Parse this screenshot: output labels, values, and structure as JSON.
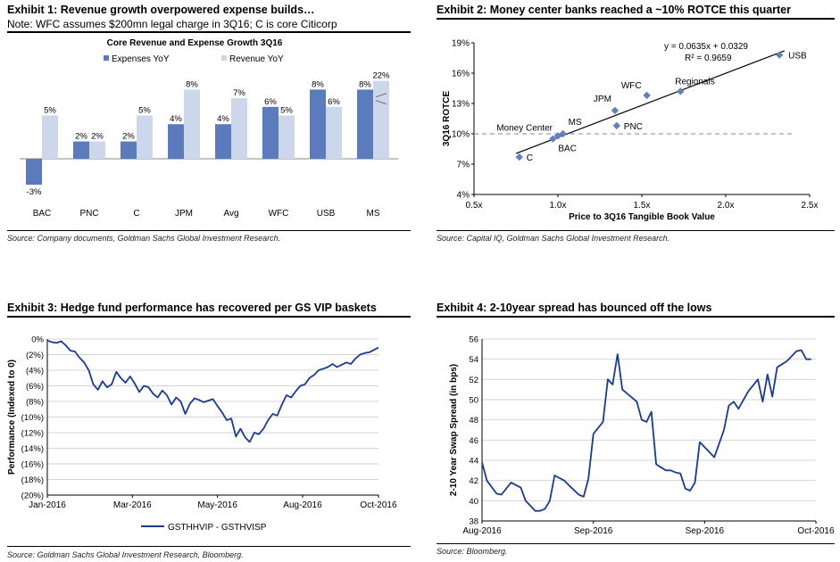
{
  "exhibits": [
    {
      "title": "Exhibit 1: Revenue growth overpowered expense builds…",
      "note": "Note: WFC assumes $200mn legal charge in 3Q16; C is core Citicorp",
      "source": "Source: Company documents, Goldman Sachs Global Investment Research."
    },
    {
      "title": "Exhibit 2: Money center banks reached a ~10% ROTCE this quarter",
      "source": "Source: Capital IQ, Goldman Sachs Global Investment Research."
    },
    {
      "title": "Exhibit 3: Hedge fund performance has recovered per GS VIP baskets",
      "source": "Source: Goldman Sachs Global Investment Research, Bloomberg."
    },
    {
      "title": "Exhibit 4: 2-10year spread has bounced off the lows",
      "source": "Source: Bloomberg."
    }
  ],
  "chart_data": [
    {
      "type": "bar",
      "title": "Core Revenue and Expense Growth 3Q16",
      "categories": [
        "BAC",
        "PNC",
        "C",
        "JPM",
        "Avg",
        "WFC",
        "USB",
        "MS"
      ],
      "series": [
        {
          "name": "Expenses YoY",
          "values": [
            -3,
            2,
            2,
            4,
            4,
            6,
            8,
            8
          ],
          "labels": [
            "-3%",
            "2%",
            "2%",
            "4%",
            "4%",
            "6%",
            "8%",
            "8%"
          ]
        },
        {
          "name": "Revenue YoY",
          "values": [
            5,
            2,
            5,
            8,
            7,
            5,
            6,
            22
          ],
          "labels": [
            "5%",
            "2%",
            "5%",
            "8%",
            "7%",
            "5%",
            "6%",
            "22%"
          ]
        }
      ],
      "ylim": [
        -4,
        10
      ],
      "axis_break": "MS Revenue YoY bar truncated (22%)",
      "legend": "top",
      "colors": {
        "expenses": "#5b7bbd",
        "revenue": "#cdd7eb"
      }
    },
    {
      "type": "scatter",
      "xlabel": "Price to 3Q16 Tangible Book Value",
      "ylabel": "3Q16 ROTCE",
      "xlim": [
        0.5,
        2.5
      ],
      "ylim": [
        4,
        19
      ],
      "xticks": [
        0.5,
        1.0,
        1.5,
        2.0,
        2.5
      ],
      "xtick_labels": [
        "0.5x",
        "1.0x",
        "1.5x",
        "2.0x",
        "2.5x"
      ],
      "yticks": [
        4,
        7,
        10,
        13,
        16,
        19
      ],
      "ytick_labels": [
        "4%",
        "7%",
        "10%",
        "13%",
        "16%",
        "19%"
      ],
      "points": [
        {
          "label": "C",
          "x": 0.77,
          "y": 7.7
        },
        {
          "label": "BAC",
          "x": 0.97,
          "y": 9.5
        },
        {
          "label": "Money Center",
          "x": 1.0,
          "y": 9.8
        },
        {
          "label": "MS",
          "x": 1.03,
          "y": 10.0
        },
        {
          "label": "PNC",
          "x": 1.35,
          "y": 10.8
        },
        {
          "label": "JPM",
          "x": 1.34,
          "y": 12.3
        },
        {
          "label": "WFC",
          "x": 1.53,
          "y": 13.8
        },
        {
          "label": "Regionals",
          "x": 1.73,
          "y": 14.2
        },
        {
          "label": "USB",
          "x": 2.32,
          "y": 17.8
        }
      ],
      "trendline": {
        "slope": 0.0635,
        "intercept": 0.0329,
        "equation": "y = 0.0635x + 0.0329",
        "r2": "R² = 0.9659"
      },
      "reference_line": 10,
      "color": "#6380b8"
    },
    {
      "type": "line",
      "ylabel": "Performance (Indexed to 0)",
      "ylim": [
        -20,
        0
      ],
      "yticks": [
        0,
        -2,
        -4,
        -6,
        -8,
        -10,
        -12,
        -14,
        -16,
        -18,
        -20
      ],
      "ytick_labels": [
        "0%",
        "(2%)",
        "(4%)",
        "(6%)",
        "(8%)",
        "(10%)",
        "(12%)",
        "(14%)",
        "(16%)",
        "(18%)",
        "(20%)"
      ],
      "xlim": [
        "2016-01-01",
        "2016-10-15"
      ],
      "x_tick_dates": [
        "2016-01-01",
        "2016-03-15",
        "2016-05-28",
        "2016-08-10",
        "2016-10-15"
      ],
      "xtick_labels": [
        "Jan-2016",
        "Mar-2016",
        "May-2016",
        "Aug-2016",
        "Oct-2016"
      ],
      "legend": "bottom",
      "grid": true,
      "series": [
        {
          "name": "GSTHHVIP - GSTHVISP",
          "color": "#1a3a8c",
          "x": [
            "2016-01-01",
            "2016-01-05",
            "2016-01-09",
            "2016-01-13",
            "2016-01-17",
            "2016-01-21",
            "2016-01-25",
            "2016-01-29",
            "2016-02-02",
            "2016-02-06",
            "2016-02-10",
            "2016-02-14",
            "2016-02-18",
            "2016-02-22",
            "2016-02-26",
            "2016-03-01",
            "2016-03-05",
            "2016-03-09",
            "2016-03-13",
            "2016-03-17",
            "2016-03-21",
            "2016-03-25",
            "2016-03-29",
            "2016-04-02",
            "2016-04-06",
            "2016-04-10",
            "2016-04-14",
            "2016-04-18",
            "2016-04-22",
            "2016-04-26",
            "2016-04-30",
            "2016-05-04",
            "2016-05-08",
            "2016-05-12",
            "2016-05-16",
            "2016-05-20",
            "2016-05-24",
            "2016-05-28",
            "2016-06-01",
            "2016-06-05",
            "2016-06-09",
            "2016-06-13",
            "2016-06-17",
            "2016-06-21",
            "2016-06-25",
            "2016-06-29",
            "2016-07-03",
            "2016-07-07",
            "2016-07-11",
            "2016-07-15",
            "2016-07-19",
            "2016-07-23",
            "2016-07-27",
            "2016-07-31",
            "2016-08-04",
            "2016-08-08",
            "2016-08-12",
            "2016-08-16",
            "2016-08-20",
            "2016-08-24",
            "2016-08-28",
            "2016-09-01",
            "2016-09-05",
            "2016-09-09",
            "2016-09-13",
            "2016-09-17",
            "2016-09-21",
            "2016-09-25",
            "2016-09-29",
            "2016-10-03",
            "2016-10-07",
            "2016-10-11",
            "2016-10-15"
          ],
          "values": [
            -0.2,
            -0.4,
            -0.5,
            -0.3,
            -0.8,
            -1.5,
            -1.6,
            -2.4,
            -3.0,
            -4.0,
            -5.8,
            -6.5,
            -5.4,
            -6.2,
            -5.8,
            -4.2,
            -5.0,
            -5.6,
            -4.8,
            -5.7,
            -6.8,
            -6.0,
            -6.2,
            -7.0,
            -7.5,
            -6.6,
            -7.2,
            -8.4,
            -7.5,
            -8.0,
            -9.6,
            -8.3,
            -7.6,
            -7.8,
            -8.1,
            -7.9,
            -7.7,
            -8.6,
            -9.4,
            -10.4,
            -10.2,
            -12.5,
            -11.5,
            -12.6,
            -13.2,
            -12.0,
            -12.2,
            -11.5,
            -10.4,
            -9.6,
            -9.8,
            -8.4,
            -7.2,
            -7.5,
            -6.7,
            -6.0,
            -5.8,
            -5.0,
            -4.6,
            -4.0,
            -3.8,
            -3.6,
            -3.2,
            -3.6,
            -3.3,
            -3.0,
            -3.2,
            -2.5,
            -2.0,
            -1.8,
            -1.7,
            -1.4,
            -1.1
          ]
        }
      ]
    },
    {
      "type": "line",
      "ylabel": "2-10 Year Swap Spread (in bps)",
      "ylim": [
        38,
        56
      ],
      "yticks": [
        38,
        40,
        42,
        44,
        46,
        48,
        50,
        52,
        54,
        56
      ],
      "xlim": [
        "2016-08-01",
        "2016-10-09"
      ],
      "x_tick_dates": [
        "2016-08-01",
        "2016-08-24",
        "2016-09-16",
        "2016-10-09"
      ],
      "xtick_labels": [
        "Aug-2016",
        "Sep-2016",
        "Sep-2016",
        "Oct-2016"
      ],
      "grid": true,
      "series": [
        {
          "color": "#1a3a8c",
          "x": [
            "2016-08-01",
            "2016-08-02",
            "2016-08-04",
            "2016-08-05",
            "2016-08-07",
            "2016-08-09",
            "2016-08-10",
            "2016-08-12",
            "2016-08-13",
            "2016-08-14",
            "2016-08-15",
            "2016-08-16",
            "2016-08-18",
            "2016-08-19",
            "2016-08-21",
            "2016-08-22",
            "2016-08-23",
            "2016-08-24",
            "2016-08-26",
            "2016-08-27",
            "2016-08-28",
            "2016-08-29",
            "2016-08-30",
            "2016-08-31",
            "2016-09-02",
            "2016-09-03",
            "2016-09-04",
            "2016-09-05",
            "2016-09-06",
            "2016-09-08",
            "2016-09-09",
            "2016-09-10",
            "2016-09-11",
            "2016-09-12",
            "2016-09-13",
            "2016-09-14",
            "2016-09-15",
            "2016-09-17",
            "2016-09-18",
            "2016-09-20",
            "2016-09-21",
            "2016-09-22",
            "2016-09-23",
            "2016-09-25",
            "2016-09-27",
            "2016-09-28",
            "2016-09-29",
            "2016-09-30",
            "2016-10-01",
            "2016-10-02",
            "2016-10-03",
            "2016-10-05",
            "2016-10-06",
            "2016-10-07",
            "2016-10-08"
          ],
          "values": [
            43.8,
            42.0,
            40.7,
            40.6,
            41.8,
            41.3,
            40.0,
            39.0,
            39.0,
            39.2,
            40.0,
            42.5,
            42.0,
            41.5,
            40.6,
            40.4,
            42.2,
            46.6,
            47.8,
            52.0,
            51.5,
            54.5,
            51.0,
            50.6,
            49.8,
            48.0,
            47.8,
            48.8,
            43.6,
            43.0,
            43.0,
            42.8,
            42.7,
            41.2,
            41.0,
            41.8,
            45.8,
            44.8,
            44.3,
            47.0,
            49.4,
            49.8,
            49.1,
            50.8,
            52.0,
            49.8,
            52.5,
            50.3,
            53.2,
            53.5,
            53.8,
            54.8,
            54.9,
            54.0,
            54.0
          ]
        }
      ]
    }
  ]
}
